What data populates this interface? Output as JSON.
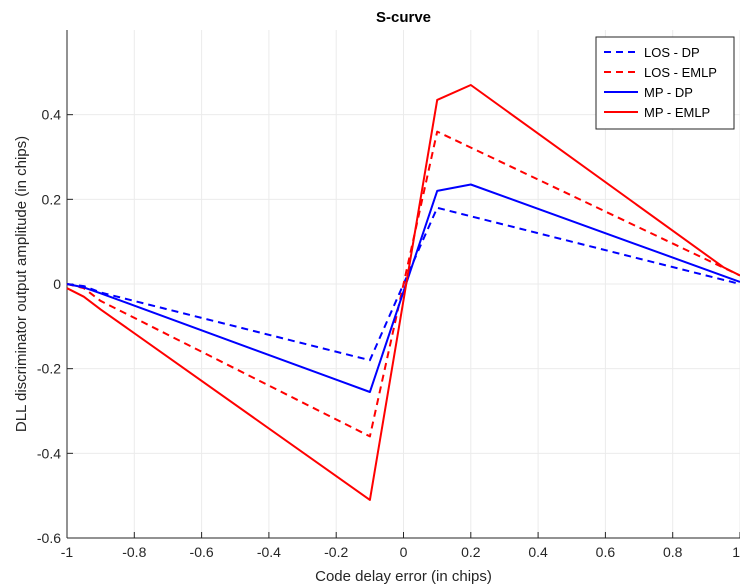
{
  "chart_data": {
    "type": "line",
    "title": "S-curve",
    "xlabel": "Code delay error (in chips)",
    "ylabel": "DLL discriminator output amplitude (in chips)",
    "xlim": [
      -1,
      1
    ],
    "ylim": [
      -0.6,
      0.6
    ],
    "xticks": [
      "-1",
      "-0.8",
      "-0.6",
      "-0.4",
      "-0.2",
      "0",
      "0.2",
      "0.4",
      "0.6",
      "0.8",
      "1"
    ],
    "yticks": [
      "-0.6",
      "-0.4",
      "-0.2",
      "0",
      "0.2",
      "0.4"
    ],
    "grid": true,
    "legend_position": "top-right",
    "series": [
      {
        "name": "LOS - DP",
        "color": "#0000ff",
        "dash": "dashed",
        "x": [
          -1.0,
          -0.95,
          -0.9,
          -0.1,
          0.1,
          1.0
        ],
        "y": [
          0.0,
          -0.005,
          -0.02,
          -0.18,
          0.18,
          0.0
        ]
      },
      {
        "name": "LOS - EMLP",
        "color": "#ff0000",
        "dash": "dashed",
        "x": [
          -1.0,
          -0.95,
          -0.9,
          -0.1,
          0.1,
          1.0
        ],
        "y": [
          0.0,
          -0.01,
          -0.04,
          -0.36,
          0.36,
          0.02
        ]
      },
      {
        "name": "MP - DP",
        "color": "#0000ff",
        "dash": "solid",
        "x": [
          -1.0,
          -0.95,
          -0.9,
          -0.1,
          0.1,
          0.2,
          1.0
        ],
        "y": [
          0.0,
          -0.008,
          -0.022,
          -0.255,
          0.22,
          0.235,
          0.005
        ]
      },
      {
        "name": "MP - EMLP",
        "color": "#ff0000",
        "dash": "solid",
        "x": [
          -1.0,
          -0.95,
          -0.9,
          -0.1,
          0.1,
          0.2,
          0.95,
          1.0
        ],
        "y": [
          -0.01,
          -0.03,
          -0.06,
          -0.51,
          0.435,
          0.47,
          0.04,
          0.02
        ]
      }
    ]
  }
}
